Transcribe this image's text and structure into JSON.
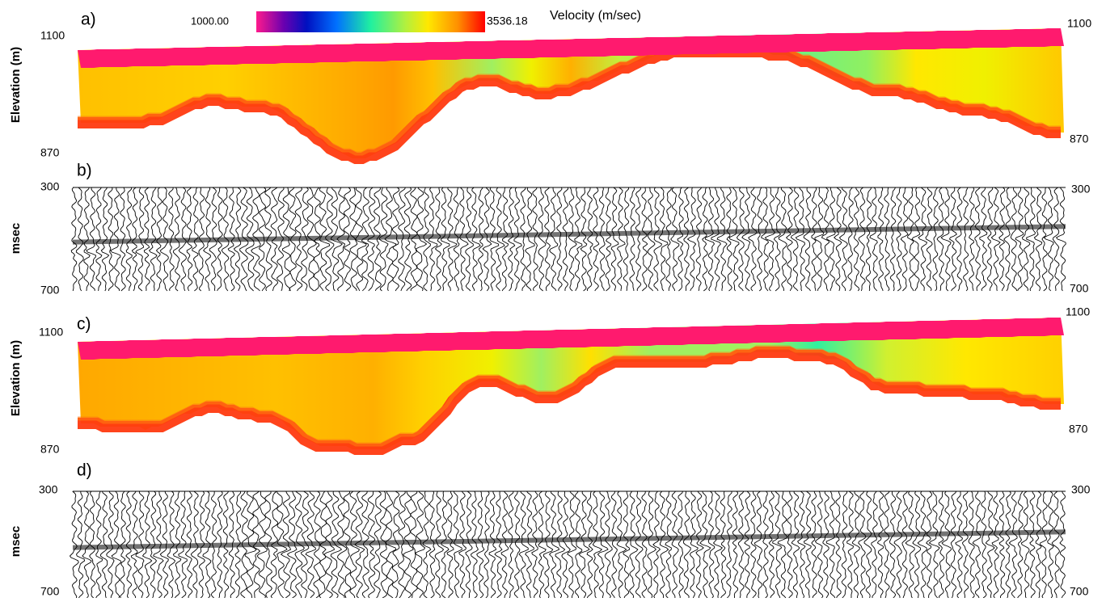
{
  "colorbar": {
    "min_label": "1000.00",
    "max_label": "3536.18",
    "title": "Velocity (m/sec)"
  },
  "panels": [
    {
      "label": "a)",
      "axis_label": "Elevation (m)",
      "left_ticks": [
        "1100",
        "870"
      ],
      "right_ticks": [
        "1100",
        "870"
      ]
    },
    {
      "label": "b)",
      "axis_label": "msec",
      "left_ticks": [
        "300",
        "700"
      ],
      "right_ticks": [
        "300",
        "700"
      ]
    },
    {
      "label": "c)",
      "axis_label": "Elevation (m)",
      "left_ticks": [
        "1100",
        "870"
      ],
      "right_ticks": [
        "1100",
        "870"
      ]
    },
    {
      "label": "d)",
      "axis_label": "msec",
      "left_ticks": [
        "300",
        "700"
      ],
      "right_ticks": [
        "300",
        "700"
      ]
    }
  ]
}
